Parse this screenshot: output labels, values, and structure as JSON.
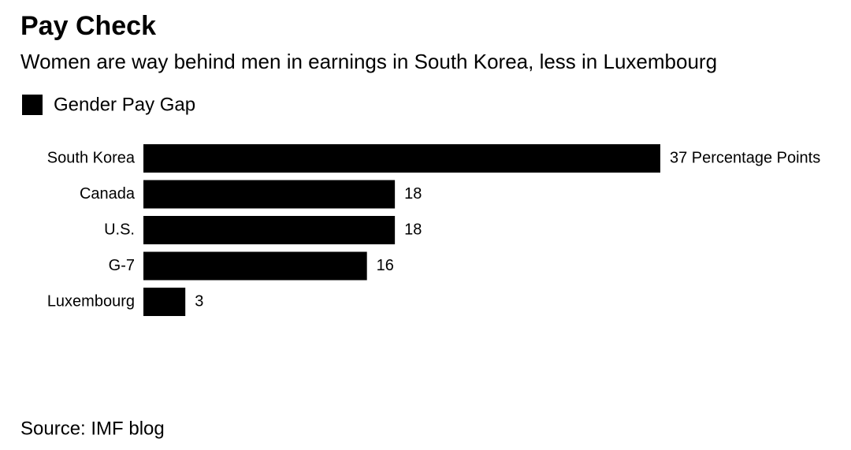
{
  "chart_data": {
    "type": "bar",
    "orientation": "horizontal",
    "title": "Pay Check",
    "subtitle": "Women are way behind men in earnings in South Korea, less in Luxembourg",
    "source": "Source: IMF blog",
    "categories": [
      "South Korea",
      "Canada",
      "U.S.",
      "G-7",
      "Luxembourg"
    ],
    "series": [
      {
        "name": "Gender Pay Gap",
        "color": "#000000",
        "values": [
          37,
          18,
          18,
          16,
          3
        ],
        "value_labels": [
          "37 Percentage Points",
          "18",
          "18",
          "16",
          "3"
        ]
      }
    ]
  }
}
